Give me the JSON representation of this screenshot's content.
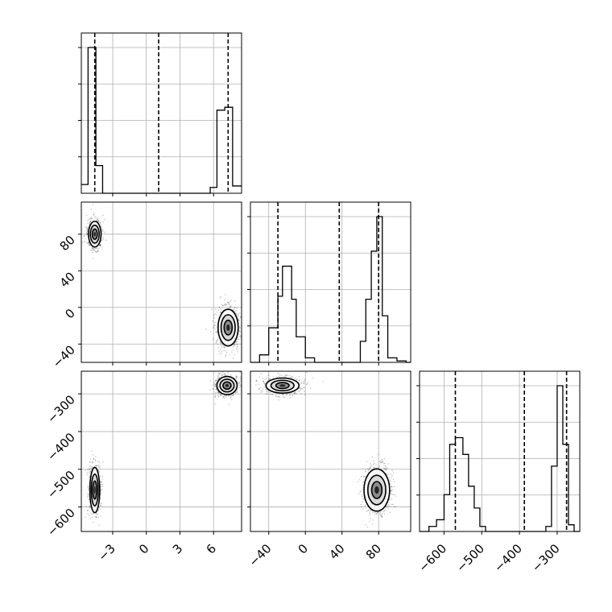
{
  "chart_data": {
    "type": "corner",
    "parameters": [
      {
        "ticks": [
          -3,
          0,
          3,
          6
        ],
        "tick_labels": [
          "−3",
          "0",
          "3",
          "6"
        ],
        "range": [
          -5.8,
          8.5
        ]
      },
      {
        "ticks": [
          -40,
          0,
          40,
          80
        ],
        "tick_labels": [
          "−40",
          "0",
          "40",
          "80"
        ],
        "range": [
          -60,
          115
        ]
      },
      {
        "ticks": [
          -600,
          -500,
          -400,
          -300
        ],
        "tick_labels": [
          "−600",
          "−500",
          "−400",
          "−300"
        ],
        "range": [
          -665,
          -240
        ]
      }
    ],
    "histograms": [
      {
        "param": 0,
        "bin_edges": [
          -5.8,
          -5.2,
          -4.5,
          -3.9,
          5.7,
          6.3,
          7.0,
          7.7,
          8.5
        ],
        "counts": [
          0.06,
          1.0,
          0.19,
          0.0,
          0.04,
          0.57,
          0.59,
          0.05
        ],
        "quantiles": [
          -4.6,
          1.1,
          7.3
        ]
      },
      {
        "param": 1,
        "bin_edges": [
          -60,
          -50,
          -40,
          -30,
          -25,
          -20,
          -15,
          -10,
          0,
          10,
          20,
          55,
          60,
          66,
          72,
          78,
          84,
          90,
          100,
          110,
          115
        ],
        "counts": [
          0.0,
          0.05,
          0.23,
          0.44,
          0.64,
          0.64,
          0.42,
          0.17,
          0.03,
          0.0,
          0.0,
          0.0,
          0.14,
          0.42,
          0.74,
          0.97,
          0.31,
          0.03,
          0.01,
          0.0
        ],
        "quantiles": [
          -30,
          37,
          80
        ]
      },
      {
        "param": 2,
        "bin_edges": [
          -665,
          -640,
          -620,
          -600,
          -585,
          -570,
          -550,
          -535,
          -520,
          -505,
          -490,
          -470,
          -330,
          -315,
          -300,
          -285,
          -270,
          -255,
          -240
        ],
        "counts": [
          0.0,
          0.03,
          0.07,
          0.22,
          0.52,
          0.56,
          0.46,
          0.27,
          0.14,
          0.03,
          0.0,
          0.0,
          0.03,
          0.39,
          0.87,
          0.52,
          0.04,
          0.0
        ],
        "quantiles": [
          -570,
          -387,
          -275
        ]
      }
    ],
    "scatter_2d": [
      {
        "x_param": 0,
        "y_param": 1,
        "clusters": [
          {
            "center": [
              -4.6,
              80
            ],
            "spread": [
              0.28,
              7
            ]
          },
          {
            "center": [
              7.3,
              -22
            ],
            "spread": [
              0.45,
              10
            ]
          }
        ]
      },
      {
        "x_param": 0,
        "y_param": 2,
        "clusters": [
          {
            "center": [
              -4.6,
              -555
            ],
            "spread": [
              0.22,
              30
            ]
          },
          {
            "center": [
              7.2,
              -278
            ],
            "spread": [
              0.45,
              12
            ]
          }
        ]
      },
      {
        "x_param": 1,
        "y_param": 2,
        "clusters": [
          {
            "center": [
              -25,
              -278
            ],
            "spread": [
              9,
              10
            ]
          },
          {
            "center": [
              78,
              -555
            ],
            "spread": [
              7,
              28
            ]
          }
        ]
      }
    ],
    "grid": true
  }
}
